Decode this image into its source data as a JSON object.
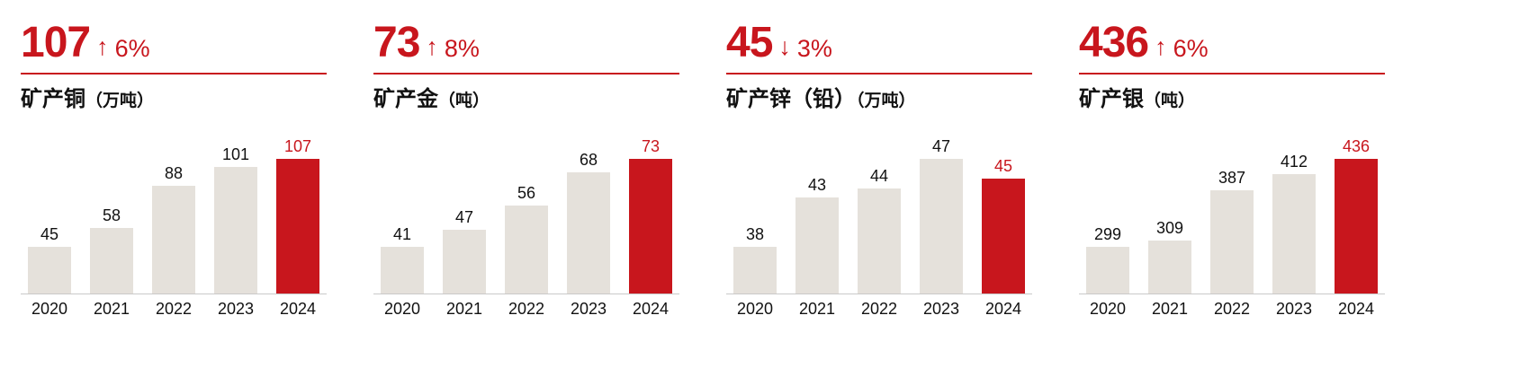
{
  "colors": {
    "accent": "#c8161d",
    "bar_default": "#e5e1db",
    "baseline": "#c9c9c9",
    "text": "#111111"
  },
  "chart_data": [
    {
      "type": "bar",
      "title": "矿产铜",
      "unit": "（万吨）",
      "headline": "107",
      "arrow": "↑",
      "direction": "up",
      "change": "6%",
      "categories": [
        "2020",
        "2021",
        "2022",
        "2023",
        "2024"
      ],
      "values": [
        45,
        58,
        88,
        101,
        107
      ],
      "highlight_index": 4,
      "legend": "none",
      "grid": false,
      "axis_note": "bars min-max scaled, non-zero baseline"
    },
    {
      "type": "bar",
      "title": "矿产金",
      "unit": "（吨）",
      "headline": "73",
      "arrow": "↑",
      "direction": "up",
      "change": "8%",
      "categories": [
        "2020",
        "2021",
        "2022",
        "2023",
        "2024"
      ],
      "values": [
        41,
        47,
        56,
        68,
        73
      ],
      "highlight_index": 4,
      "legend": "none",
      "grid": false,
      "axis_note": "bars min-max scaled, non-zero baseline"
    },
    {
      "type": "bar",
      "title": "矿产锌（铅）",
      "unit": "（万吨）",
      "headline": "45",
      "arrow": "↓",
      "direction": "down",
      "change": "3%",
      "categories": [
        "2020",
        "2021",
        "2022",
        "2023",
        "2024"
      ],
      "values": [
        38,
        43,
        44,
        47,
        45
      ],
      "highlight_index": 4,
      "legend": "none",
      "grid": false,
      "axis_note": "bars min-max scaled, non-zero baseline"
    },
    {
      "type": "bar",
      "title": "矿产银",
      "unit": "（吨）",
      "headline": "436",
      "arrow": "↑",
      "direction": "up",
      "change": "6%",
      "categories": [
        "2020",
        "2021",
        "2022",
        "2023",
        "2024"
      ],
      "values": [
        299,
        309,
        387,
        412,
        436
      ],
      "highlight_index": 4,
      "legend": "none",
      "grid": false,
      "axis_note": "bars min-max scaled, non-zero baseline"
    }
  ]
}
